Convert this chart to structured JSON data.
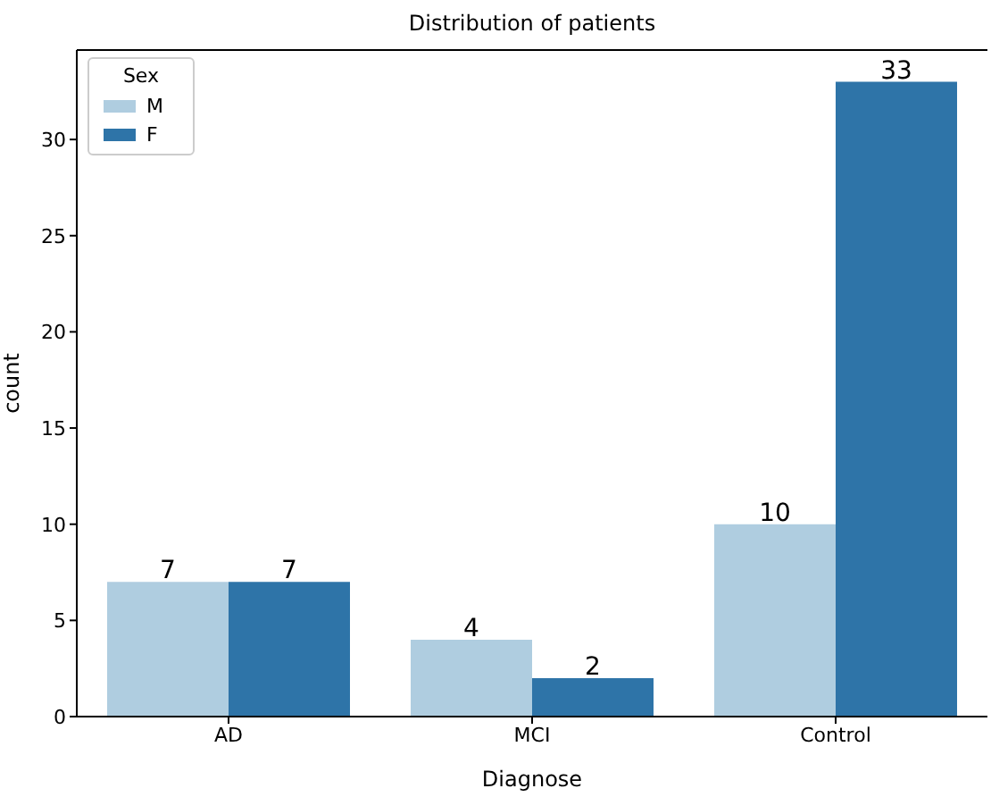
{
  "chart_data": {
    "type": "bar",
    "title": "Distribution of patients",
    "xlabel": "Diagnose",
    "ylabel": "count",
    "legend_title": "Sex",
    "categories": [
      "AD",
      "MCI",
      "Control"
    ],
    "series": [
      {
        "name": "M",
        "color": "#afcde0",
        "values": [
          7,
          4,
          10
        ]
      },
      {
        "name": "F",
        "color": "#2e74a8",
        "values": [
          7,
          2,
          33
        ]
      }
    ],
    "ylim": [
      0,
      34.65
    ],
    "yticks": [
      0,
      5,
      10,
      15,
      20,
      25,
      30
    ],
    "data_labels": true,
    "legend": "top left",
    "grid": false
  }
}
